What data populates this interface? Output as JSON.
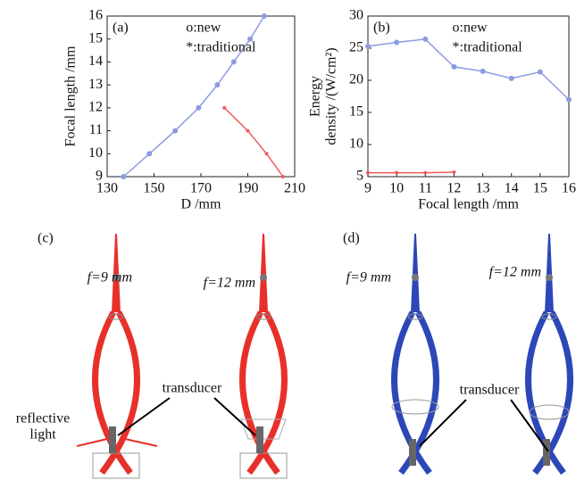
{
  "chart_data": [
    {
      "type": "line",
      "annotation": "(a)",
      "xlabel": "D /mm",
      "ylabel": "Focal length /mm",
      "xlim": [
        130,
        210
      ],
      "xticks": [
        130,
        150,
        170,
        190,
        210
      ],
      "ylim": [
        9,
        16
      ],
      "yticks": [
        9,
        10,
        11,
        12,
        13,
        14,
        15,
        16
      ],
      "series": [
        {
          "name": "o:new",
          "color": "#8c9be0",
          "marker": "o",
          "x": [
            137,
            148,
            159,
            169,
            177,
            184,
            191,
            197
          ],
          "values": [
            9,
            10,
            11,
            12,
            13,
            14,
            15,
            16
          ]
        },
        {
          "name": "*:traditional",
          "color": "#f05a5a",
          "marker": "*",
          "x": [
            180,
            190,
            198,
            205
          ],
          "values": [
            12,
            11,
            10,
            9
          ]
        }
      ]
    },
    {
      "type": "line",
      "annotation": "(b)",
      "xlabel": "Focal length /mm",
      "ylabel": [
        "Energy",
        "density /(W/cm²)"
      ],
      "xlim": [
        9,
        16
      ],
      "xticks": [
        9,
        10,
        11,
        12,
        13,
        14,
        15,
        16
      ],
      "ylim": [
        5,
        30
      ],
      "yticks": [
        5,
        10,
        15,
        20,
        25,
        30
      ],
      "series": [
        {
          "name": "o:new",
          "color": "#8c9be0",
          "marker": "o",
          "x": [
            9,
            10,
            11,
            12,
            13,
            14,
            15,
            16
          ],
          "values": [
            25.3,
            25.9,
            26.4,
            22.1,
            21.4,
            20.3,
            21.3,
            17
          ]
        },
        {
          "name": "*:traditional",
          "color": "#f05a5a",
          "marker": "*",
          "x": [
            9,
            10,
            11,
            12
          ],
          "values": [
            5.6,
            5.6,
            5.6,
            5.7
          ]
        }
      ]
    }
  ],
  "panels": [
    {
      "label": "(c)",
      "focal": [
        "f=9 mm",
        "f=12 mm"
      ],
      "transducer": "transducer",
      "reflective": [
        "reflective",
        "light"
      ]
    },
    {
      "label": "(d)",
      "focal": [
        "f=9 mm",
        "f=12 mm"
      ],
      "transducer": "transducer"
    }
  ]
}
